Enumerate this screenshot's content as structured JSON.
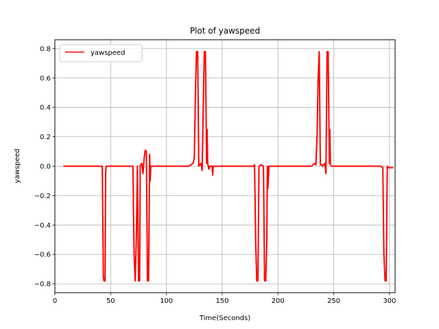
{
  "chart_data": {
    "type": "line",
    "title": "Plot of yawspeed",
    "xlabel": "Time(Seconds)",
    "ylabel": "yawspeed",
    "xlim": [
      0,
      305
    ],
    "ylim": [
      -0.86,
      0.86
    ],
    "xticks": [
      0,
      50,
      100,
      150,
      200,
      250,
      300
    ],
    "yticks": [
      -0.8,
      -0.6,
      -0.4,
      -0.2,
      0.0,
      0.2,
      0.4,
      0.6,
      0.8
    ],
    "xtick_labels": [
      "0",
      "50",
      "100",
      "150",
      "200",
      "250",
      "300"
    ],
    "ytick_labels": [
      "−0.8",
      "−0.6",
      "−0.4",
      "−0.2",
      "0.0",
      "0.2",
      "0.4",
      "0.6",
      "0.8"
    ],
    "grid": true,
    "legend": {
      "placement": "top-left",
      "entries": [
        "yawspeed"
      ]
    },
    "series": [
      {
        "name": "yawspeed",
        "color": "#ff0000",
        "x": [
          8,
          17,
          42.5,
          43.5,
          44,
          45,
          45.5,
          46,
          47,
          70,
          71,
          72,
          73,
          74,
          75,
          76,
          76.5,
          77,
          78,
          79,
          80,
          81,
          82,
          83,
          84,
          85,
          85.5,
          86,
          87,
          120,
          124,
          125,
          126,
          127,
          128,
          129,
          130,
          131,
          132,
          133,
          134,
          135,
          136,
          136.5,
          137,
          138,
          139,
          140,
          141,
          141.5,
          142,
          178,
          179,
          180,
          181,
          182,
          183,
          185,
          187,
          188,
          189,
          190,
          190.5,
          191,
          192,
          230,
          233,
          234,
          235,
          236,
          237,
          238,
          239,
          240,
          241,
          242,
          243,
          244,
          245,
          246,
          246.5,
          247,
          248,
          249,
          251,
          292,
          294,
          295,
          296,
          297,
          298,
          299,
          301,
          303
        ],
        "y": [
          0,
          0,
          0,
          -0.75,
          -0.78,
          -0.78,
          -0.05,
          0,
          0,
          0,
          -0.6,
          -0.78,
          -0.5,
          0,
          -0.78,
          -0.78,
          0,
          0.01,
          0.02,
          -0.05,
          0.05,
          0.11,
          0.1,
          -0.78,
          -0.78,
          0.08,
          -0.1,
          0,
          0,
          0,
          0.02,
          0.06,
          0.5,
          0.78,
          0.78,
          0,
          0.01,
          0.02,
          -0.03,
          0.4,
          0.78,
          0.78,
          0.02,
          0.25,
          0.02,
          -0.02,
          0,
          0,
          0,
          -0.06,
          0,
          0,
          0.01,
          -0.5,
          -0.78,
          -0.78,
          0,
          0.01,
          0,
          -0.78,
          -0.78,
          -0.5,
          0,
          -0.15,
          0,
          0,
          0.02,
          0.01,
          0.2,
          0.6,
          0.78,
          0.01,
          0.01,
          0,
          0.01,
          0.02,
          -0.05,
          0.78,
          0.78,
          0.02,
          0.25,
          0.01,
          0,
          0,
          0,
          0,
          -0.01,
          -0.6,
          -0.78,
          -0.78,
          0,
          -0.01,
          -0.01,
          -0.01
        ]
      }
    ]
  }
}
